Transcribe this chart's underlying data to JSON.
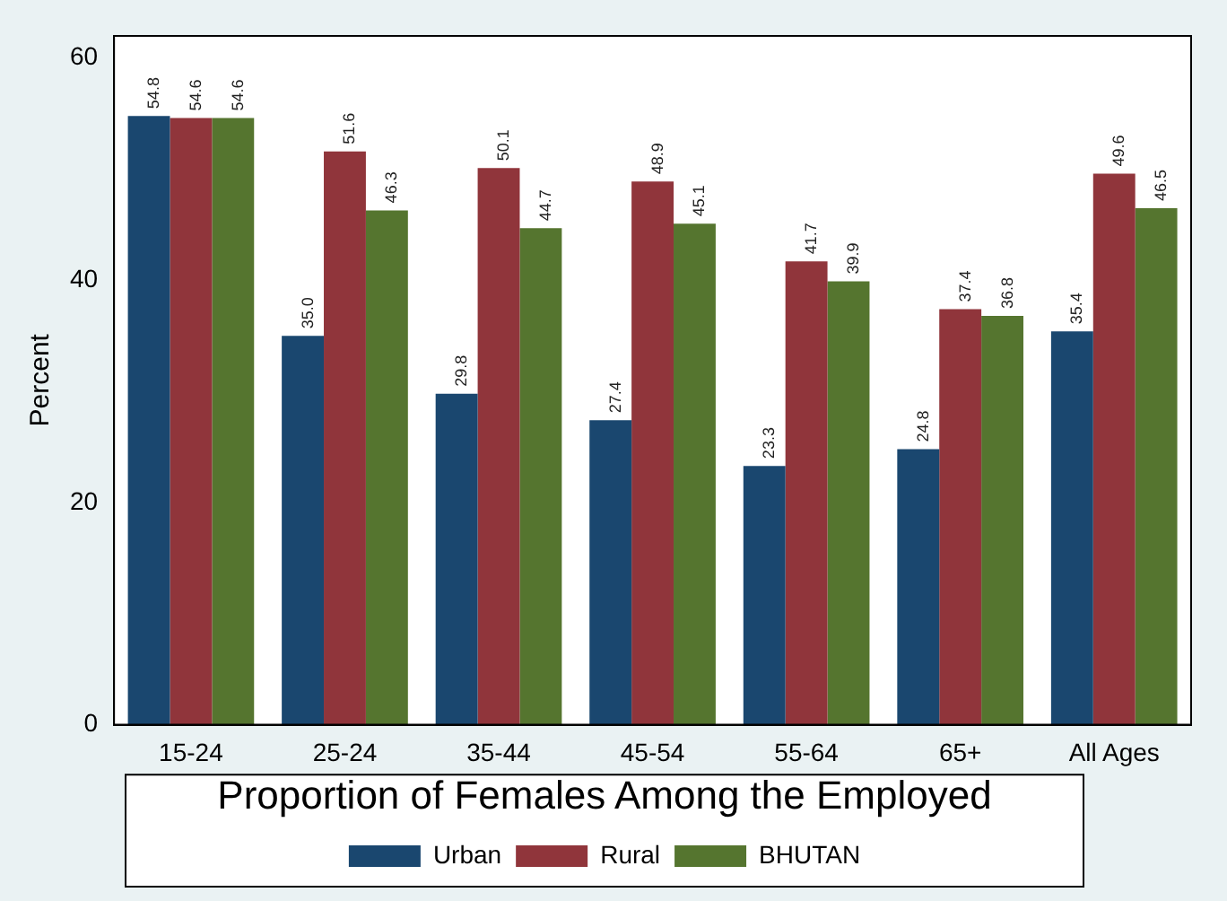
{
  "chart_data": {
    "type": "bar",
    "ylabel": "Percent",
    "legend_title": "Proportion of Females Among the Employed",
    "categories": [
      "15-24",
      "25-24",
      "35-44",
      "45-54",
      "55-64",
      "65+",
      "All Ages"
    ],
    "series": [
      {
        "name": "Urban",
        "color": "#1a476f",
        "values": [
          54.8,
          35.0,
          29.8,
          27.4,
          23.3,
          24.8,
          35.4
        ],
        "value_labels": [
          "54.8",
          "35.0",
          "29.8",
          "27.4",
          "23.3",
          "24.8",
          "35.4"
        ]
      },
      {
        "name": "Rural",
        "color": "#90353b",
        "values": [
          54.6,
          51.6,
          50.1,
          48.9,
          41.7,
          37.4,
          49.6
        ],
        "value_labels": [
          "54.6",
          "51.6",
          "50.1",
          "48.9",
          "41.7",
          "37.4",
          "49.6"
        ]
      },
      {
        "name": "BHUTAN",
        "color": "#55752f",
        "values": [
          54.6,
          46.3,
          44.7,
          45.1,
          39.9,
          36.8,
          46.5
        ],
        "value_labels": [
          "54.6",
          "46.3",
          "44.7",
          "45.1",
          "39.9",
          "36.8",
          "46.5"
        ]
      }
    ],
    "ylim": [
      0,
      62
    ],
    "yticks": [
      0,
      20,
      40,
      60
    ],
    "grid": false,
    "legend": "bottom"
  }
}
